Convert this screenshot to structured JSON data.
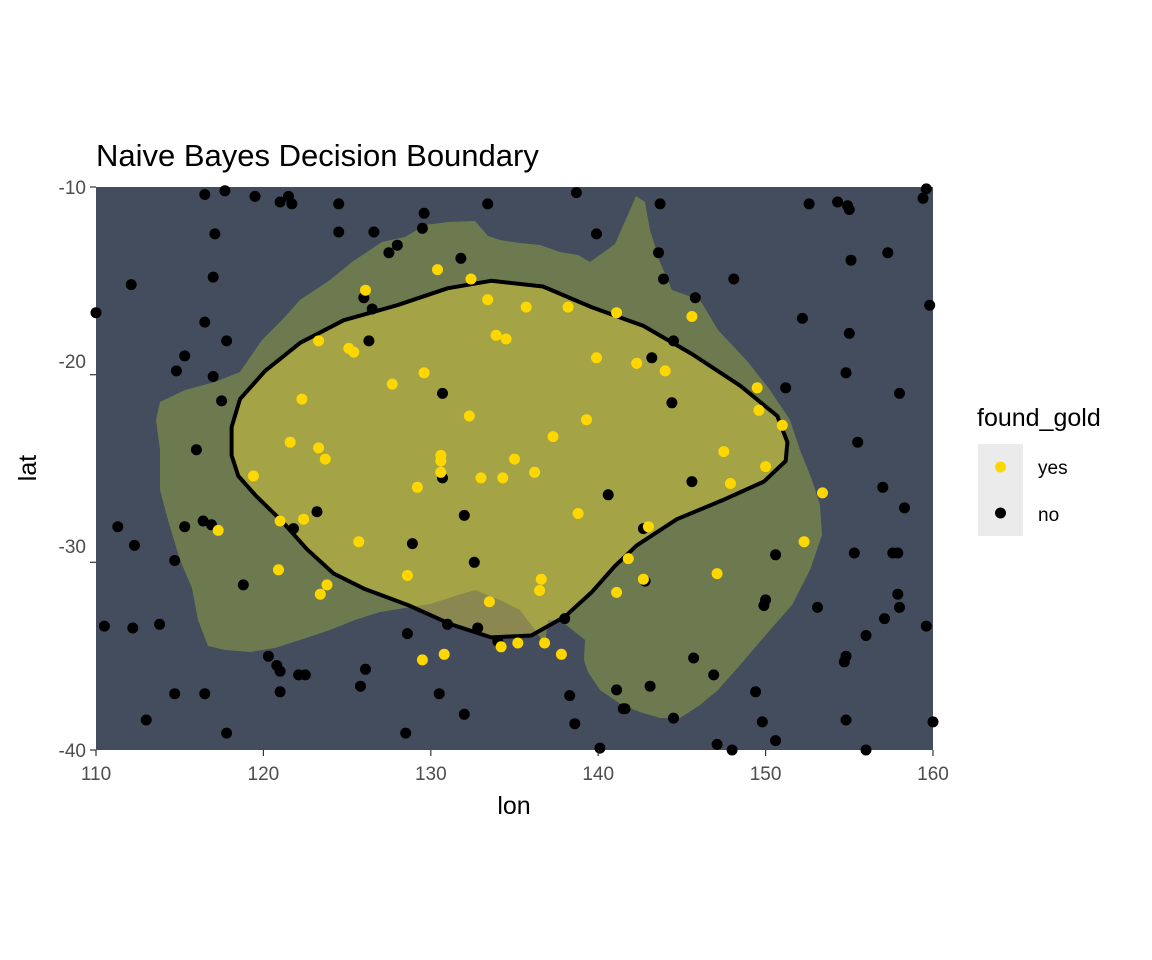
{
  "chart_data": {
    "type": "scatter",
    "title": "Naive Bayes Decision Boundary",
    "xlabel": "lon",
    "ylabel": "lat",
    "xlim": [
      110,
      160
    ],
    "ylim": [
      -40,
      -10
    ],
    "xticks": [
      110,
      120,
      130,
      140,
      150,
      160
    ],
    "yticks": [
      -10,
      -20,
      -30,
      -40
    ],
    "grid": false,
    "background": "satellite map of Australia",
    "legend": {
      "title": "found_gold",
      "placement": "right",
      "entries": [
        {
          "label": "yes",
          "color": "#FFD700"
        },
        {
          "label": "no",
          "color": "#000000"
        }
      ]
    },
    "colors": {
      "yes": "#FFD700",
      "no": "#000000",
      "ocean": "#434D5E",
      "boundary": "#000000"
    },
    "decision_boundary": [
      [
        133.6,
        -15.0
      ],
      [
        136.7,
        -15.3
      ],
      [
        139.6,
        -16.4
      ],
      [
        142.7,
        -17.4
      ],
      [
        145.6,
        -18.9
      ],
      [
        148.5,
        -20.6
      ],
      [
        150.7,
        -22.2
      ],
      [
        151.3,
        -23.6
      ],
      [
        151.2,
        -24.6
      ],
      [
        149.9,
        -25.7
      ],
      [
        147.4,
        -26.7
      ],
      [
        144.7,
        -27.7
      ],
      [
        142.3,
        -29.1
      ],
      [
        141.0,
        -30.2
      ],
      [
        139.6,
        -31.6
      ],
      [
        138.0,
        -32.9
      ],
      [
        136.0,
        -33.9
      ],
      [
        133.6,
        -34.0
      ],
      [
        131.2,
        -33.3
      ],
      [
        128.7,
        -32.3
      ],
      [
        126.0,
        -31.4
      ],
      [
        124.2,
        -30.6
      ],
      [
        122.6,
        -29.3
      ],
      [
        121.1,
        -27.8
      ],
      [
        119.6,
        -26.5
      ],
      [
        118.5,
        -25.4
      ],
      [
        118.1,
        -24.3
      ],
      [
        118.1,
        -22.8
      ],
      [
        118.6,
        -21.3
      ],
      [
        120.1,
        -19.8
      ],
      [
        122.2,
        -18.3
      ],
      [
        124.8,
        -17.1
      ],
      [
        128.0,
        -16.3
      ],
      [
        131.0,
        -15.4
      ],
      [
        133.6,
        -15.0
      ]
    ],
    "series": [
      {
        "name": "yes",
        "points": [
          [
            126.1,
            -15.5
          ],
          [
            130.4,
            -14.4
          ],
          [
            132.4,
            -14.9
          ],
          [
            133.4,
            -16.0
          ],
          [
            135.7,
            -16.4
          ],
          [
            138.2,
            -16.4
          ],
          [
            141.1,
            -16.7
          ],
          [
            145.6,
            -16.9
          ],
          [
            123.3,
            -18.2
          ],
          [
            125.1,
            -18.6
          ],
          [
            125.4,
            -18.8
          ],
          [
            133.9,
            -17.9
          ],
          [
            134.5,
            -18.1
          ],
          [
            139.9,
            -19.1
          ],
          [
            142.3,
            -19.4
          ],
          [
            144.0,
            -19.8
          ],
          [
            122.3,
            -21.3
          ],
          [
            127.7,
            -20.5
          ],
          [
            129.6,
            -19.9
          ],
          [
            149.5,
            -20.7
          ],
          [
            149.6,
            -21.9
          ],
          [
            151.0,
            -22.7
          ],
          [
            121.6,
            -23.6
          ],
          [
            123.3,
            -23.9
          ],
          [
            123.7,
            -24.5
          ],
          [
            130.6,
            -24.3
          ],
          [
            130.6,
            -24.6
          ],
          [
            132.3,
            -22.2
          ],
          [
            135.0,
            -24.5
          ],
          [
            137.3,
            -23.3
          ],
          [
            139.3,
            -22.4
          ],
          [
            147.5,
            -24.1
          ],
          [
            119.4,
            -25.4
          ],
          [
            130.6,
            -25.2
          ],
          [
            129.2,
            -26.0
          ],
          [
            133.0,
            -25.5
          ],
          [
            134.3,
            -25.5
          ],
          [
            136.2,
            -25.2
          ],
          [
            147.9,
            -25.8
          ],
          [
            150.0,
            -24.9
          ],
          [
            121.0,
            -27.8
          ],
          [
            122.4,
            -27.7
          ],
          [
            117.3,
            -28.3
          ],
          [
            138.8,
            -27.4
          ],
          [
            143.0,
            -28.1
          ],
          [
            153.4,
            -26.3
          ],
          [
            125.7,
            -28.9
          ],
          [
            152.3,
            -28.9
          ],
          [
            120.9,
            -30.4
          ],
          [
            128.6,
            -30.7
          ],
          [
            136.6,
            -30.9
          ],
          [
            136.5,
            -31.5
          ],
          [
            141.8,
            -29.8
          ],
          [
            142.7,
            -30.9
          ],
          [
            141.1,
            -31.6
          ],
          [
            147.1,
            -30.6
          ],
          [
            123.8,
            -31.2
          ],
          [
            123.4,
            -31.7
          ],
          [
            133.5,
            -32.1
          ],
          [
            129.5,
            -35.2
          ],
          [
            130.8,
            -34.9
          ],
          [
            134.2,
            -34.5
          ],
          [
            135.2,
            -34.3
          ],
          [
            136.8,
            -34.3
          ],
          [
            137.8,
            -34.9
          ]
        ]
      },
      {
        "name": "no",
        "points": [
          [
            110.0,
            -16.7
          ],
          [
            112.1,
            -15.2
          ],
          [
            116.5,
            -10.4
          ],
          [
            117.7,
            -10.2
          ],
          [
            119.5,
            -10.5
          ],
          [
            121.0,
            -10.8
          ],
          [
            121.5,
            -10.5
          ],
          [
            121.7,
            -10.9
          ],
          [
            124.5,
            -10.9
          ],
          [
            124.5,
            -12.4
          ],
          [
            126.6,
            -12.4
          ],
          [
            127.5,
            -13.5
          ],
          [
            128.0,
            -13.1
          ],
          [
            129.5,
            -12.2
          ],
          [
            129.6,
            -11.4
          ],
          [
            133.4,
            -10.9
          ],
          [
            138.7,
            -10.3
          ],
          [
            139.9,
            -12.5
          ],
          [
            143.6,
            -13.5
          ],
          [
            143.7,
            -10.9
          ],
          [
            143.9,
            -14.9
          ],
          [
            145.8,
            -15.9
          ],
          [
            148.1,
            -14.9
          ],
          [
            144.5,
            -18.2
          ],
          [
            152.6,
            -10.9
          ],
          [
            154.3,
            -10.8
          ],
          [
            154.9,
            -11.0
          ],
          [
            155.0,
            -11.2
          ],
          [
            159.6,
            -10.1
          ],
          [
            159.4,
            -10.6
          ],
          [
            157.3,
            -13.5
          ],
          [
            155.1,
            -13.9
          ],
          [
            159.8,
            -16.3
          ],
          [
            152.2,
            -17.0
          ],
          [
            155.0,
            -17.8
          ],
          [
            154.8,
            -19.9
          ],
          [
            158.0,
            -21.0
          ],
          [
            117.1,
            -12.5
          ],
          [
            117.0,
            -14.8
          ],
          [
            116.5,
            -17.2
          ],
          [
            117.8,
            -18.2
          ],
          [
            115.3,
            -19.0
          ],
          [
            114.8,
            -19.8
          ],
          [
            117.0,
            -20.1
          ],
          [
            117.5,
            -21.4
          ],
          [
            126.0,
            -15.9
          ],
          [
            126.3,
            -18.2
          ],
          [
            126.5,
            -16.5
          ],
          [
            131.8,
            -13.8
          ],
          [
            130.7,
            -21.0
          ],
          [
            130.7,
            -25.5
          ],
          [
            132.0,
            -27.5
          ],
          [
            132.6,
            -30.0
          ],
          [
            128.9,
            -29.0
          ],
          [
            123.2,
            -27.3
          ],
          [
            121.8,
            -28.2
          ],
          [
            140.6,
            -26.4
          ],
          [
            143.2,
            -19.1
          ],
          [
            144.4,
            -21.5
          ],
          [
            145.6,
            -25.7
          ],
          [
            151.2,
            -20.7
          ],
          [
            155.5,
            -23.6
          ],
          [
            157.0,
            -26.0
          ],
          [
            158.3,
            -27.1
          ],
          [
            157.6,
            -29.5
          ],
          [
            157.9,
            -29.5
          ],
          [
            157.9,
            -31.7
          ],
          [
            158.0,
            -32.4
          ],
          [
            157.1,
            -33.0
          ],
          [
            159.6,
            -33.4
          ],
          [
            156.0,
            -33.9
          ],
          [
            155.3,
            -29.5
          ],
          [
            153.1,
            -32.4
          ],
          [
            150.6,
            -29.6
          ],
          [
            150.0,
            -32.0
          ],
          [
            149.9,
            -32.3
          ],
          [
            145.7,
            -35.1
          ],
          [
            146.9,
            -36.0
          ],
          [
            149.4,
            -36.9
          ],
          [
            149.8,
            -38.5
          ],
          [
            150.6,
            -39.5
          ],
          [
            147.1,
            -39.7
          ],
          [
            148.0,
            -40.0
          ],
          [
            154.8,
            -35.0
          ],
          [
            154.7,
            -35.3
          ],
          [
            154.8,
            -38.4
          ],
          [
            156.0,
            -40.0
          ],
          [
            160.0,
            -38.5
          ],
          [
            142.8,
            -31.0
          ],
          [
            142.7,
            -28.2
          ],
          [
            143.1,
            -36.6
          ],
          [
            144.5,
            -38.3
          ],
          [
            141.6,
            -37.8
          ],
          [
            141.1,
            -36.8
          ],
          [
            141.5,
            -37.8
          ],
          [
            138.3,
            -37.1
          ],
          [
            138.6,
            -38.6
          ],
          [
            140.1,
            -39.9
          ],
          [
            111.3,
            -28.1
          ],
          [
            112.3,
            -29.1
          ],
          [
            114.7,
            -29.9
          ],
          [
            115.3,
            -28.1
          ],
          [
            116.0,
            -24.0
          ],
          [
            116.4,
            -27.8
          ],
          [
            116.9,
            -28.0
          ],
          [
            118.8,
            -31.2
          ],
          [
            110.5,
            -33.4
          ],
          [
            112.2,
            -33.5
          ],
          [
            113.8,
            -33.3
          ],
          [
            114.7,
            -37.0
          ],
          [
            116.5,
            -37.0
          ],
          [
            113.0,
            -38.4
          ],
          [
            117.8,
            -39.1
          ],
          [
            120.3,
            -35.0
          ],
          [
            120.8,
            -35.5
          ],
          [
            121.0,
            -35.8
          ],
          [
            121.0,
            -36.9
          ],
          [
            122.1,
            -36.0
          ],
          [
            122.5,
            -36.0
          ],
          [
            125.8,
            -36.6
          ],
          [
            126.1,
            -35.7
          ],
          [
            128.6,
            -33.8
          ],
          [
            128.5,
            -39.1
          ],
          [
            130.5,
            -37.0
          ],
          [
            131.0,
            -33.3
          ],
          [
            132.0,
            -38.1
          ],
          [
            132.8,
            -33.5
          ],
          [
            134.0,
            -34.2
          ],
          [
            138.0,
            -33.0
          ]
        ]
      }
    ]
  }
}
